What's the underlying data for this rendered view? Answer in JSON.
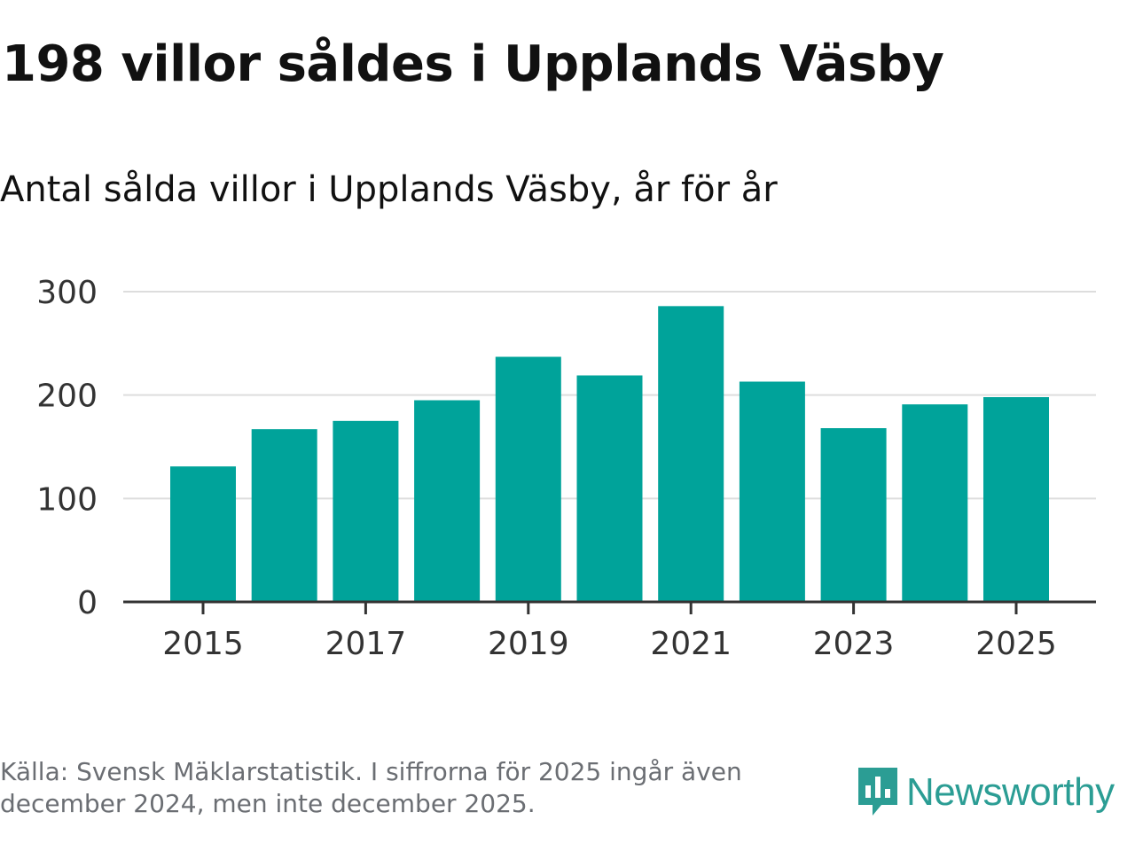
{
  "title": "198 villor såldes i Upplands Väsby",
  "subtitle": "Antal sålda villor i Upplands Väsby, år för år",
  "footnote": "Källa: Svensk Mäklarstatistik. I siffrorna för 2025 ingår även december 2024, men inte december 2025.",
  "brand": {
    "name": "Newsworthy",
    "icon": "newsworthy-logo-icon"
  },
  "colors": {
    "bar": "#00a39a",
    "grid": "#dddddd",
    "axis": "#333333",
    "text": "#333333"
  },
  "chart_data": {
    "type": "bar",
    "title": "198 villor såldes i Upplands Väsby",
    "subtitle": "Antal sålda villor i Upplands Väsby, år för år",
    "xlabel": "",
    "ylabel": "",
    "categories": [
      "2015",
      "2016",
      "2017",
      "2018",
      "2019",
      "2020",
      "2021",
      "2022",
      "2023",
      "2024",
      "2025"
    ],
    "values": [
      131,
      167,
      175,
      195,
      237,
      219,
      286,
      213,
      168,
      191,
      198
    ],
    "ylim": [
      0,
      300
    ],
    "yticks": [
      "0",
      "100",
      "200",
      "300"
    ],
    "xtick_labels": [
      "2015",
      "2017",
      "2019",
      "2021",
      "2023",
      "2025"
    ],
    "grid": true
  }
}
